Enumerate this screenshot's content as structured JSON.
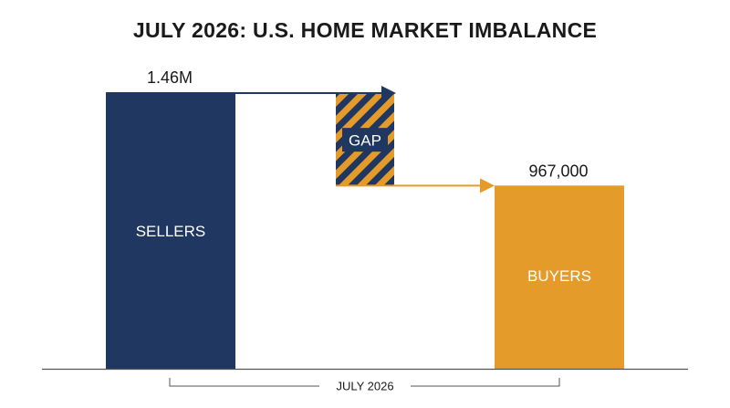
{
  "chart_data": {
    "type": "bar",
    "title": "JULY 2026: U.S. HOME MARKET IMBALANCE",
    "categories": [
      "SELLERS",
      "GAP",
      "BUYERS"
    ],
    "series": [
      {
        "values": [
          1460000,
          493000,
          967000
        ],
        "labels": [
          "1.46M",
          "",
          "967,000"
        ]
      }
    ],
    "gap_label": "GAP",
    "period_label": "JULY 2026",
    "ylim": [
      0,
      1500000
    ],
    "grid": false,
    "colors": {
      "sellers": "#1f3761",
      "buyers": "#e59b2a",
      "gap_stripe_dark": "#1f3761",
      "gap_stripe_light": "#e59b2a",
      "axis": "#555555"
    }
  }
}
